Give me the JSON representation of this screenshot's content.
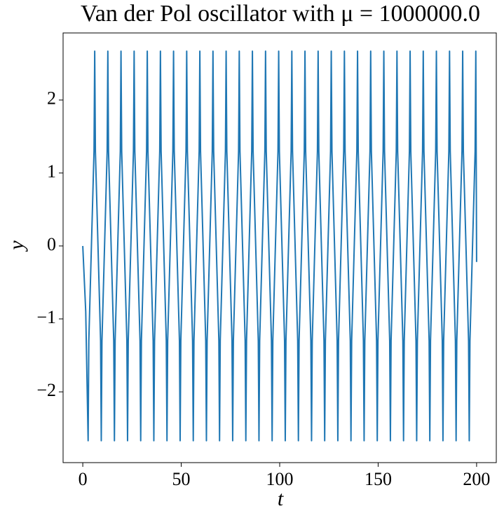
{
  "chart_data": {
    "type": "line",
    "title": "Van der Pol oscillator with μ = 1000000.0",
    "xlabel": "t",
    "ylabel": "y",
    "color": "#1f77b4",
    "x": [
      0,
      1.5,
      2.72,
      3.07,
      5.71,
      6.06,
      6.41,
      9.04,
      9.39,
      9.74,
      12.38,
      12.73,
      13.08,
      15.72,
      16.07,
      16.42,
      19.06,
      19.41,
      19.76,
      22.39,
      22.74,
      23.09,
      25.73,
      26.08,
      26.43,
      29.07,
      29.42,
      29.77,
      32.4,
      32.75,
      33.1,
      35.74,
      36.09,
      36.44,
      39.08,
      39.43,
      39.78,
      42.41,
      42.76,
      43.11,
      45.75,
      46.1,
      46.45,
      49.09,
      49.44,
      49.79,
      52.43,
      52.78,
      53.13,
      55.76,
      56.11,
      56.46,
      59.1,
      59.45,
      59.8,
      62.44,
      62.79,
      63.14,
      65.77,
      66.12,
      66.47,
      69.11,
      69.46,
      69.81,
      72.45,
      72.8,
      73.15,
      75.78,
      76.13,
      76.48,
      79.12,
      79.47,
      79.82,
      82.46,
      82.81,
      83.16,
      85.8,
      86.15,
      86.5,
      89.13,
      89.48,
      89.83,
      92.47,
      92.82,
      93.17,
      95.81,
      96.16,
      96.51,
      99.14,
      99.49,
      99.84,
      102.48,
      102.83,
      103.18,
      105.82,
      106.17,
      106.52,
      109.15,
      109.5,
      109.85,
      112.49,
      112.84,
      113.19,
      115.83,
      116.18,
      116.53,
      119.17,
      119.52,
      119.87,
      122.5,
      122.85,
      123.2,
      125.84,
      126.19,
      126.54,
      129.18,
      129.53,
      129.88,
      132.51,
      132.86,
      133.21,
      135.85,
      136.2,
      136.55,
      139.19,
      139.54,
      139.89,
      142.52,
      142.87,
      143.22,
      145.86,
      146.21,
      146.56,
      149.2,
      149.55,
      149.9,
      152.54,
      152.89,
      153.24,
      155.87,
      156.22,
      156.57,
      159.21,
      159.56,
      159.91,
      162.55,
      162.9,
      163.25,
      165.88,
      166.23,
      166.58,
      169.22,
      169.57,
      169.92,
      172.56,
      172.91,
      173.26,
      175.89,
      176.24,
      176.59,
      179.23,
      179.58,
      179.93,
      182.57,
      182.92,
      183.27,
      185.91,
      186.26,
      186.61,
      189.24,
      189.59,
      189.94,
      192.58,
      192.93,
      193.28,
      195.92,
      196.27,
      196.62,
      199.25,
      199.6,
      200.0
    ],
    "values": [
      0,
      -0.9,
      -2.67,
      -1.3,
      1.3,
      2.67,
      1.3,
      -1.3,
      -2.67,
      -1.3,
      1.3,
      2.67,
      1.3,
      -1.3,
      -2.67,
      -1.3,
      1.3,
      2.67,
      1.3,
      -1.3,
      -2.67,
      -1.3,
      1.3,
      2.67,
      1.3,
      -1.3,
      -2.67,
      -1.3,
      1.3,
      2.67,
      1.3,
      -1.3,
      -2.67,
      -1.3,
      1.3,
      2.67,
      1.3,
      -1.3,
      -2.67,
      -1.3,
      1.3,
      2.67,
      1.3,
      -1.3,
      -2.67,
      -1.3,
      1.3,
      2.67,
      1.3,
      -1.3,
      -2.67,
      -1.3,
      1.3,
      2.67,
      1.3,
      -1.3,
      -2.67,
      -1.3,
      1.3,
      2.67,
      1.3,
      -1.3,
      -2.67,
      -1.3,
      1.3,
      2.67,
      1.3,
      -1.3,
      -2.67,
      -1.3,
      1.3,
      2.67,
      1.3,
      -1.3,
      -2.67,
      -1.3,
      1.3,
      2.67,
      1.3,
      -1.3,
      -2.67,
      -1.3,
      1.3,
      2.67,
      1.3,
      -1.3,
      -2.67,
      -1.3,
      1.3,
      2.67,
      1.3,
      -1.3,
      -2.67,
      -1.3,
      1.3,
      2.67,
      1.3,
      -1.3,
      -2.67,
      -1.3,
      1.3,
      2.67,
      1.3,
      -1.3,
      -2.67,
      -1.3,
      1.3,
      2.67,
      1.3,
      -1.3,
      -2.67,
      -1.3,
      1.3,
      2.67,
      1.3,
      -1.3,
      -2.67,
      -1.3,
      1.3,
      2.67,
      1.3,
      -1.3,
      -2.67,
      -1.3,
      1.3,
      2.67,
      1.3,
      -1.3,
      -2.67,
      -1.3,
      1.3,
      2.67,
      1.3,
      -1.3,
      -2.67,
      -1.3,
      1.3,
      2.67,
      1.3,
      -1.3,
      -2.67,
      -1.3,
      1.3,
      2.67,
      1.3,
      -1.3,
      -2.67,
      -1.3,
      1.3,
      2.67,
      1.3,
      -1.3,
      -2.67,
      -1.3,
      1.3,
      2.67,
      1.3,
      -1.3,
      -2.67,
      -1.3,
      1.3,
      2.67,
      1.3,
      -1.3,
      -2.67,
      -1.3,
      1.3,
      2.67,
      1.3,
      -1.3,
      -2.67,
      -1.3,
      1.3,
      2.67,
      1.3,
      -1.3,
      -2.67,
      -1.3,
      1.3,
      2.67,
      -0.22
    ],
    "xlim": [
      -10,
      210
    ],
    "ylim": [
      -2.97,
      2.92
    ],
    "xticks": [
      0,
      50,
      100,
      150,
      200
    ],
    "yticks": [
      {
        "value": -2,
        "label": "−2"
      },
      {
        "value": -1,
        "label": "−1"
      },
      0,
      1,
      2
    ]
  }
}
